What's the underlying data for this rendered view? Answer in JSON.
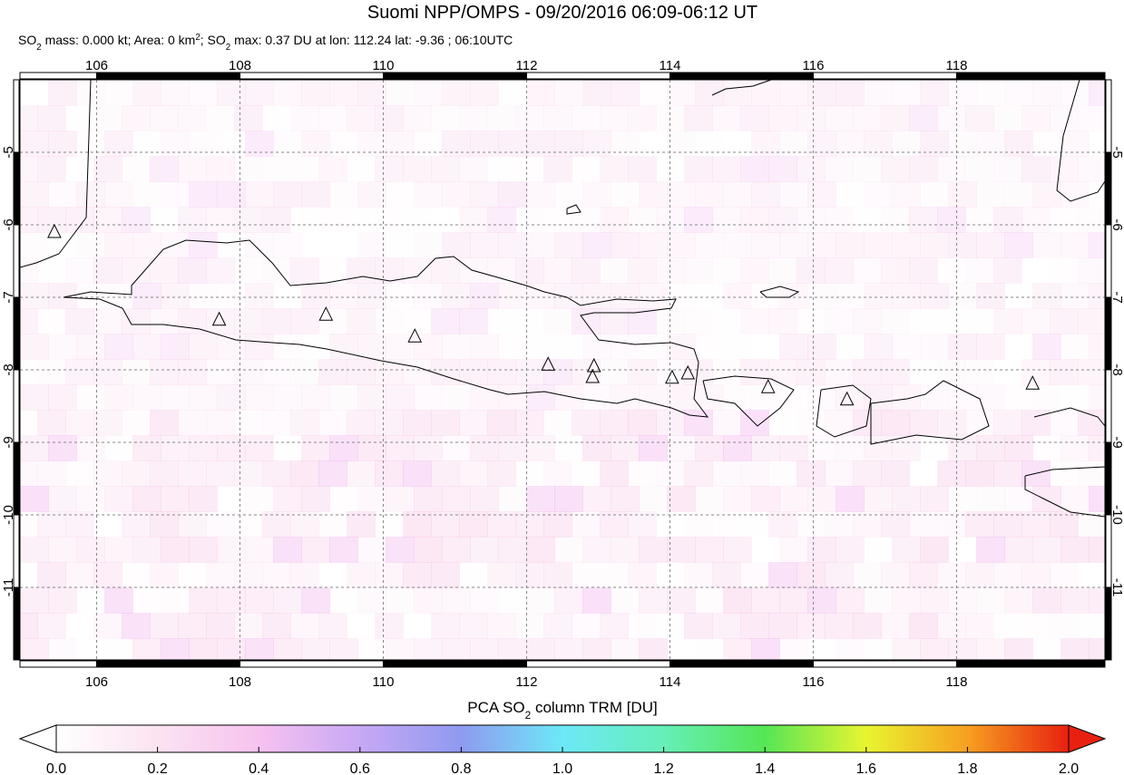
{
  "title": "Suomi NPP/OMPS - 09/20/2016 06:09-06:12 UT",
  "subtitle_parts": [
    "SO",
    "2",
    " mass: 0.000 kt; Area: 0 km",
    "2",
    "; SO",
    "2",
    " max: 0.37 DU at lon: 112.24 lat: -9.36 ; 06:10UTC"
  ],
  "map": {
    "lonlim": [
      104.93,
      120.07
    ],
    "latlim": [
      -12,
      -4
    ],
    "lonticks": [
      106,
      108,
      110,
      112,
      114,
      116,
      118
    ],
    "latticks": [
      -5,
      -6,
      -7,
      -8,
      -9,
      -10,
      -11
    ],
    "volcanoes": [
      {
        "lon": 105.41,
        "lat": -6.1
      },
      {
        "lon": 107.71,
        "lat": -7.31
      },
      {
        "lon": 109.2,
        "lat": -7.24
      },
      {
        "lon": 110.44,
        "lat": -7.54
      },
      {
        "lon": 112.3,
        "lat": -7.93
      },
      {
        "lon": 112.94,
        "lat": -7.95
      },
      {
        "lon": 112.92,
        "lat": -8.1
      },
      {
        "lon": 114.03,
        "lat": -8.11
      },
      {
        "lon": 114.25,
        "lat": -8.05
      },
      {
        "lon": 115.37,
        "lat": -8.24
      },
      {
        "lon": 116.47,
        "lat": -8.41
      },
      {
        "lon": 119.06,
        "lat": -8.19
      }
    ]
  },
  "colorbar": {
    "label_parts": [
      "PCA SO",
      "2",
      " column TRM [DU]"
    ],
    "lim": [
      0,
      2
    ],
    "ticks": [
      {
        "value": 0,
        "label": "0.0"
      },
      0.2,
      0.4,
      0.6,
      0.8,
      {
        "value": 1,
        "label": "1.0"
      },
      1.2,
      1.4,
      1.6,
      1.8,
      {
        "value": 2,
        "label": "2.0"
      }
    ]
  }
}
